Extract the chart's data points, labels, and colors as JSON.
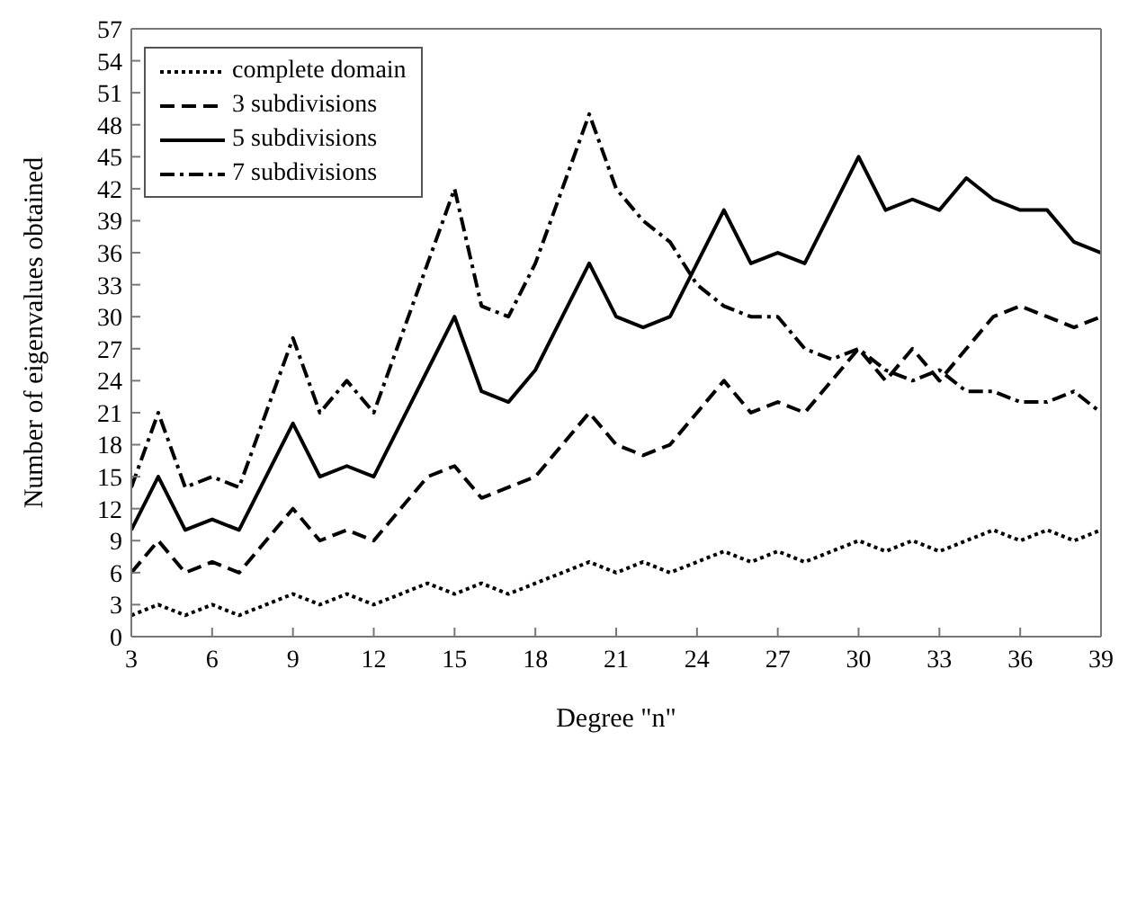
{
  "chart_data": {
    "type": "line",
    "xlabel": "Degree \"n\"",
    "ylabel": "Number of eigenvalues obtained",
    "x": [
      3,
      4,
      5,
      6,
      7,
      8,
      9,
      10,
      11,
      12,
      13,
      14,
      15,
      16,
      17,
      18,
      19,
      20,
      21,
      22,
      23,
      24,
      25,
      26,
      27,
      28,
      29,
      30,
      31,
      32,
      33,
      34,
      35,
      36,
      37,
      38,
      39
    ],
    "series": [
      {
        "name": "complete domain",
        "color": "#000000",
        "line_style": "dotted",
        "values": [
          2,
          3,
          2,
          3,
          2,
          3,
          4,
          3,
          4,
          3,
          4,
          5,
          4,
          5,
          4,
          5,
          6,
          7,
          6,
          7,
          6,
          7,
          8,
          7,
          8,
          7,
          8,
          9,
          8,
          9,
          8,
          9,
          10,
          9,
          10,
          9,
          10
        ]
      },
      {
        "name": "3 subdivisions",
        "color": "#000000",
        "line_style": "dashed",
        "values": [
          6,
          9,
          6,
          7,
          6,
          9,
          12,
          9,
          10,
          9,
          12,
          15,
          16,
          13,
          14,
          15,
          18,
          21,
          18,
          17,
          18,
          21,
          24,
          21,
          22,
          21,
          24,
          27,
          24,
          27,
          24,
          27,
          30,
          31,
          30,
          29,
          30
        ]
      },
      {
        "name": "5 subdivisions",
        "color": "#000000",
        "line_style": "solid",
        "values": [
          10,
          15,
          10,
          11,
          10,
          15,
          20,
          15,
          16,
          15,
          20,
          25,
          30,
          23,
          22,
          25,
          30,
          35,
          30,
          29,
          30,
          35,
          40,
          35,
          36,
          35,
          40,
          45,
          40,
          41,
          40,
          43,
          41,
          40,
          40,
          37,
          36
        ]
      },
      {
        "name": "7 subdivisions",
        "color": "#000000",
        "line_style": "dashdot",
        "values": [
          14,
          21,
          14,
          15,
          14,
          21,
          28,
          21,
          24,
          21,
          28,
          35,
          42,
          31,
          30,
          35,
          42,
          49,
          42,
          39,
          37,
          33,
          31,
          30,
          30,
          27,
          26,
          27,
          25,
          24,
          25,
          23,
          23,
          22,
          22,
          23,
          21
        ]
      }
    ],
    "xlim": [
      3,
      39
    ],
    "xticks": [
      3,
      6,
      9,
      12,
      15,
      18,
      21,
      24,
      27,
      30,
      33,
      36,
      39
    ],
    "ylim": [
      0,
      57
    ],
    "yticks": [
      0,
      3,
      6,
      9,
      12,
      15,
      18,
      21,
      24,
      27,
      30,
      33,
      36,
      39,
      42,
      45,
      48,
      51,
      54,
      57
    ],
    "legend": "top left",
    "marker": "none"
  }
}
